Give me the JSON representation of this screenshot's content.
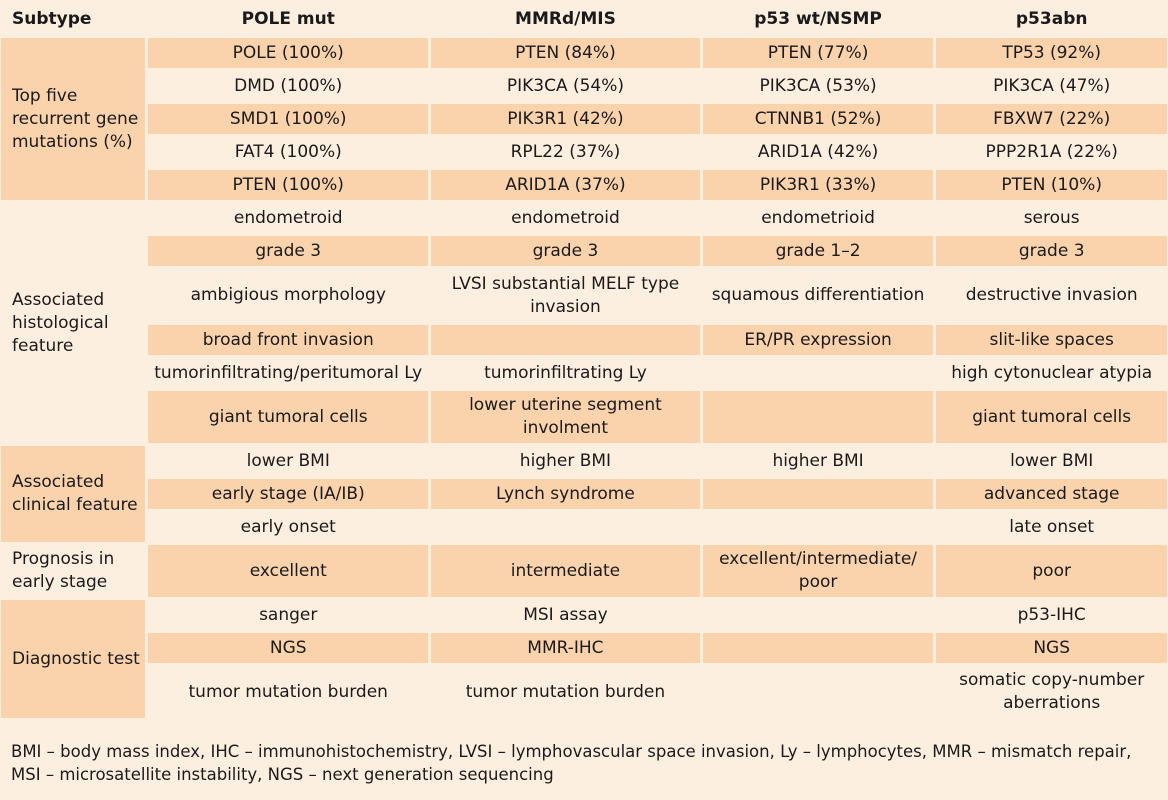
{
  "header": {
    "subtype": "Subtype",
    "columns": [
      "POLE mut",
      "MMRd/MIS",
      "p53 wt/NSMP",
      "p53abn"
    ]
  },
  "sections": {
    "mutations": {
      "label": "Top five recurrent gene mutations (%)",
      "rows": [
        [
          "POLE (100%)",
          "PTEN (84%)",
          "PTEN (77%)",
          "TP53 (92%)"
        ],
        [
          "DMD (100%)",
          "PIK3CA (54%)",
          "PIK3CA (53%)",
          "PIK3CA (47%)"
        ],
        [
          "SMD1 (100%)",
          "PIK3R1 (42%)",
          "CTNNB1 (52%)",
          "FBXW7 (22%)"
        ],
        [
          "FAT4 (100%)",
          "RPL22 (37%)",
          "ARID1A (42%)",
          "PPP2R1A (22%)"
        ],
        [
          "PTEN (100%)",
          "ARID1A (37%)",
          "PIK3R1 (33%)",
          "PTEN (10%)"
        ]
      ]
    },
    "histological": {
      "label": "Associated histological feature",
      "rows": [
        [
          "endometroid",
          "endometroid",
          "endometrioid",
          "serous"
        ],
        [
          "grade 3",
          "grade 3",
          "grade 1–2",
          "grade 3"
        ],
        [
          "ambigious morphology",
          "LVSI substantial MELF type invasion",
          "squamous differentiation",
          "destructive invasion"
        ],
        [
          "broad front invasion",
          "",
          "ER/PR expression",
          "slit-like spaces"
        ],
        [
          "tumorinfiltrating/peritumoral Ly",
          "tumorinfiltrating Ly",
          "",
          "high cytonuclear atypia"
        ],
        [
          "giant tumoral cells",
          "lower uterine segment involment",
          "",
          "giant tumoral cells"
        ]
      ]
    },
    "clinical": {
      "label": "Associated clinical feature",
      "rows": [
        [
          "lower BMI",
          "higher BMI",
          "higher BMI",
          "lower BMI"
        ],
        [
          "early stage (IA/IB)",
          "Lynch syndrome",
          "",
          "advanced stage"
        ],
        [
          "early onset",
          "",
          "",
          "late onset"
        ]
      ]
    },
    "prognosis": {
      "label": "Prognosis in early stage",
      "rows": [
        [
          "excellent",
          "intermediate",
          "excellent/intermediate/ poor",
          "poor"
        ]
      ]
    },
    "diagnostic": {
      "label": "Diagnostic test",
      "rows": [
        [
          "sanger",
          "MSI assay",
          "",
          "p53-IHC"
        ],
        [
          "NGS",
          "MMR-IHC",
          "",
          "NGS"
        ],
        [
          "tumor mutation burden",
          "tumor mutation burden",
          "",
          "somatic copy-number aberrations"
        ]
      ]
    }
  },
  "footnote": "BMI – body mass index, IHC – immunohistochemistry, LVSI – lymphovascular space invasion, Ly – lymphocytes, MMR – mismatch repair, MSI – microsatellite instability, NGS – next generation sequencing",
  "colors": {
    "shaded": "#fad3ad",
    "light": "#fdefe0"
  }
}
